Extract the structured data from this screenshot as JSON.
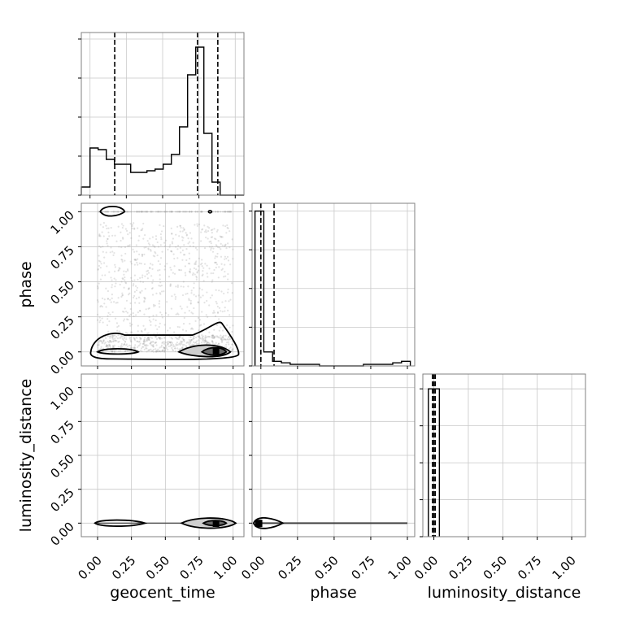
{
  "chart_data": {
    "type": "corner",
    "parameters": [
      "geocent_time",
      "phase",
      "luminosity_distance"
    ],
    "tick_labels": [
      "0.00",
      "0.25",
      "0.50",
      "0.75",
      "1.00"
    ],
    "grid": true,
    "panels": [
      {
        "id": "hist-geocent_time",
        "type": "histogram",
        "x_param": "geocent_time",
        "xlim": [
          -0.06,
          1.06
        ],
        "ylim": [
          0,
          1
        ],
        "bin_edges": [
          -0.06,
          0.0,
          0.056,
          0.112,
          0.168,
          0.224,
          0.28,
          0.336,
          0.392,
          0.448,
          0.504,
          0.56,
          0.616,
          0.672,
          0.728,
          0.784,
          0.84,
          0.896,
          0.952,
          1.008,
          1.06
        ],
        "counts": [
          0.05,
          0.29,
          0.28,
          0.22,
          0.19,
          0.19,
          0.14,
          0.14,
          0.15,
          0.16,
          0.19,
          0.25,
          0.42,
          0.74,
          0.91,
          0.38,
          0.08,
          0.0,
          0.0,
          0.0
        ],
        "quantiles": [
          0.17,
          0.74,
          0.88
        ]
      },
      {
        "id": "scatter-phase-vs-geocent_time",
        "type": "scatter_contour",
        "x_param": "geocent_time",
        "y_param": "phase",
        "xlim": [
          -0.12,
          1.08
        ],
        "ylim": [
          -0.1,
          1.06
        ],
        "note": "scatter cloud concentrated near phase 0 and 1, density peak at geocent_time ~0.87"
      },
      {
        "id": "hist-phase",
        "type": "histogram",
        "x_param": "phase",
        "xlim": [
          -0.06,
          1.05
        ],
        "ylim": [
          0,
          1.05
        ],
        "bin_edges": [
          -0.04,
          0.02,
          0.08,
          0.14,
          0.2,
          0.3,
          0.4,
          0.5,
          0.6,
          0.7,
          0.8,
          0.9,
          0.96,
          1.02
        ],
        "counts": [
          1.0,
          0.09,
          0.03,
          0.02,
          0.01,
          0.01,
          0.0,
          0.0,
          0.0,
          0.01,
          0.01,
          0.02,
          0.03
        ],
        "quantiles": [
          0.0,
          0.09
        ]
      },
      {
        "id": "scatter-luminosity_distance-vs-geocent_time",
        "type": "scatter_contour",
        "x_param": "geocent_time",
        "y_param": "luminosity_distance",
        "xlim": [
          -0.12,
          1.08
        ],
        "ylim": [
          -0.1,
          1.1
        ]
      },
      {
        "id": "scatter-luminosity_distance-vs-phase",
        "type": "scatter_contour",
        "x_param": "phase",
        "y_param": "luminosity_distance",
        "xlim": [
          -0.06,
          1.05
        ],
        "ylim": [
          -0.1,
          1.1
        ]
      },
      {
        "id": "hist-luminosity_distance",
        "type": "histogram",
        "x_param": "luminosity_distance",
        "xlim": [
          -0.08,
          1.1
        ],
        "ylim": [
          0,
          1.1
        ],
        "bin_edges": [
          -0.04,
          0.0,
          0.04
        ],
        "counts": [
          1.0,
          1.0
        ],
        "quantiles": [
          -0.01,
          0.0,
          0.01
        ]
      }
    ]
  }
}
